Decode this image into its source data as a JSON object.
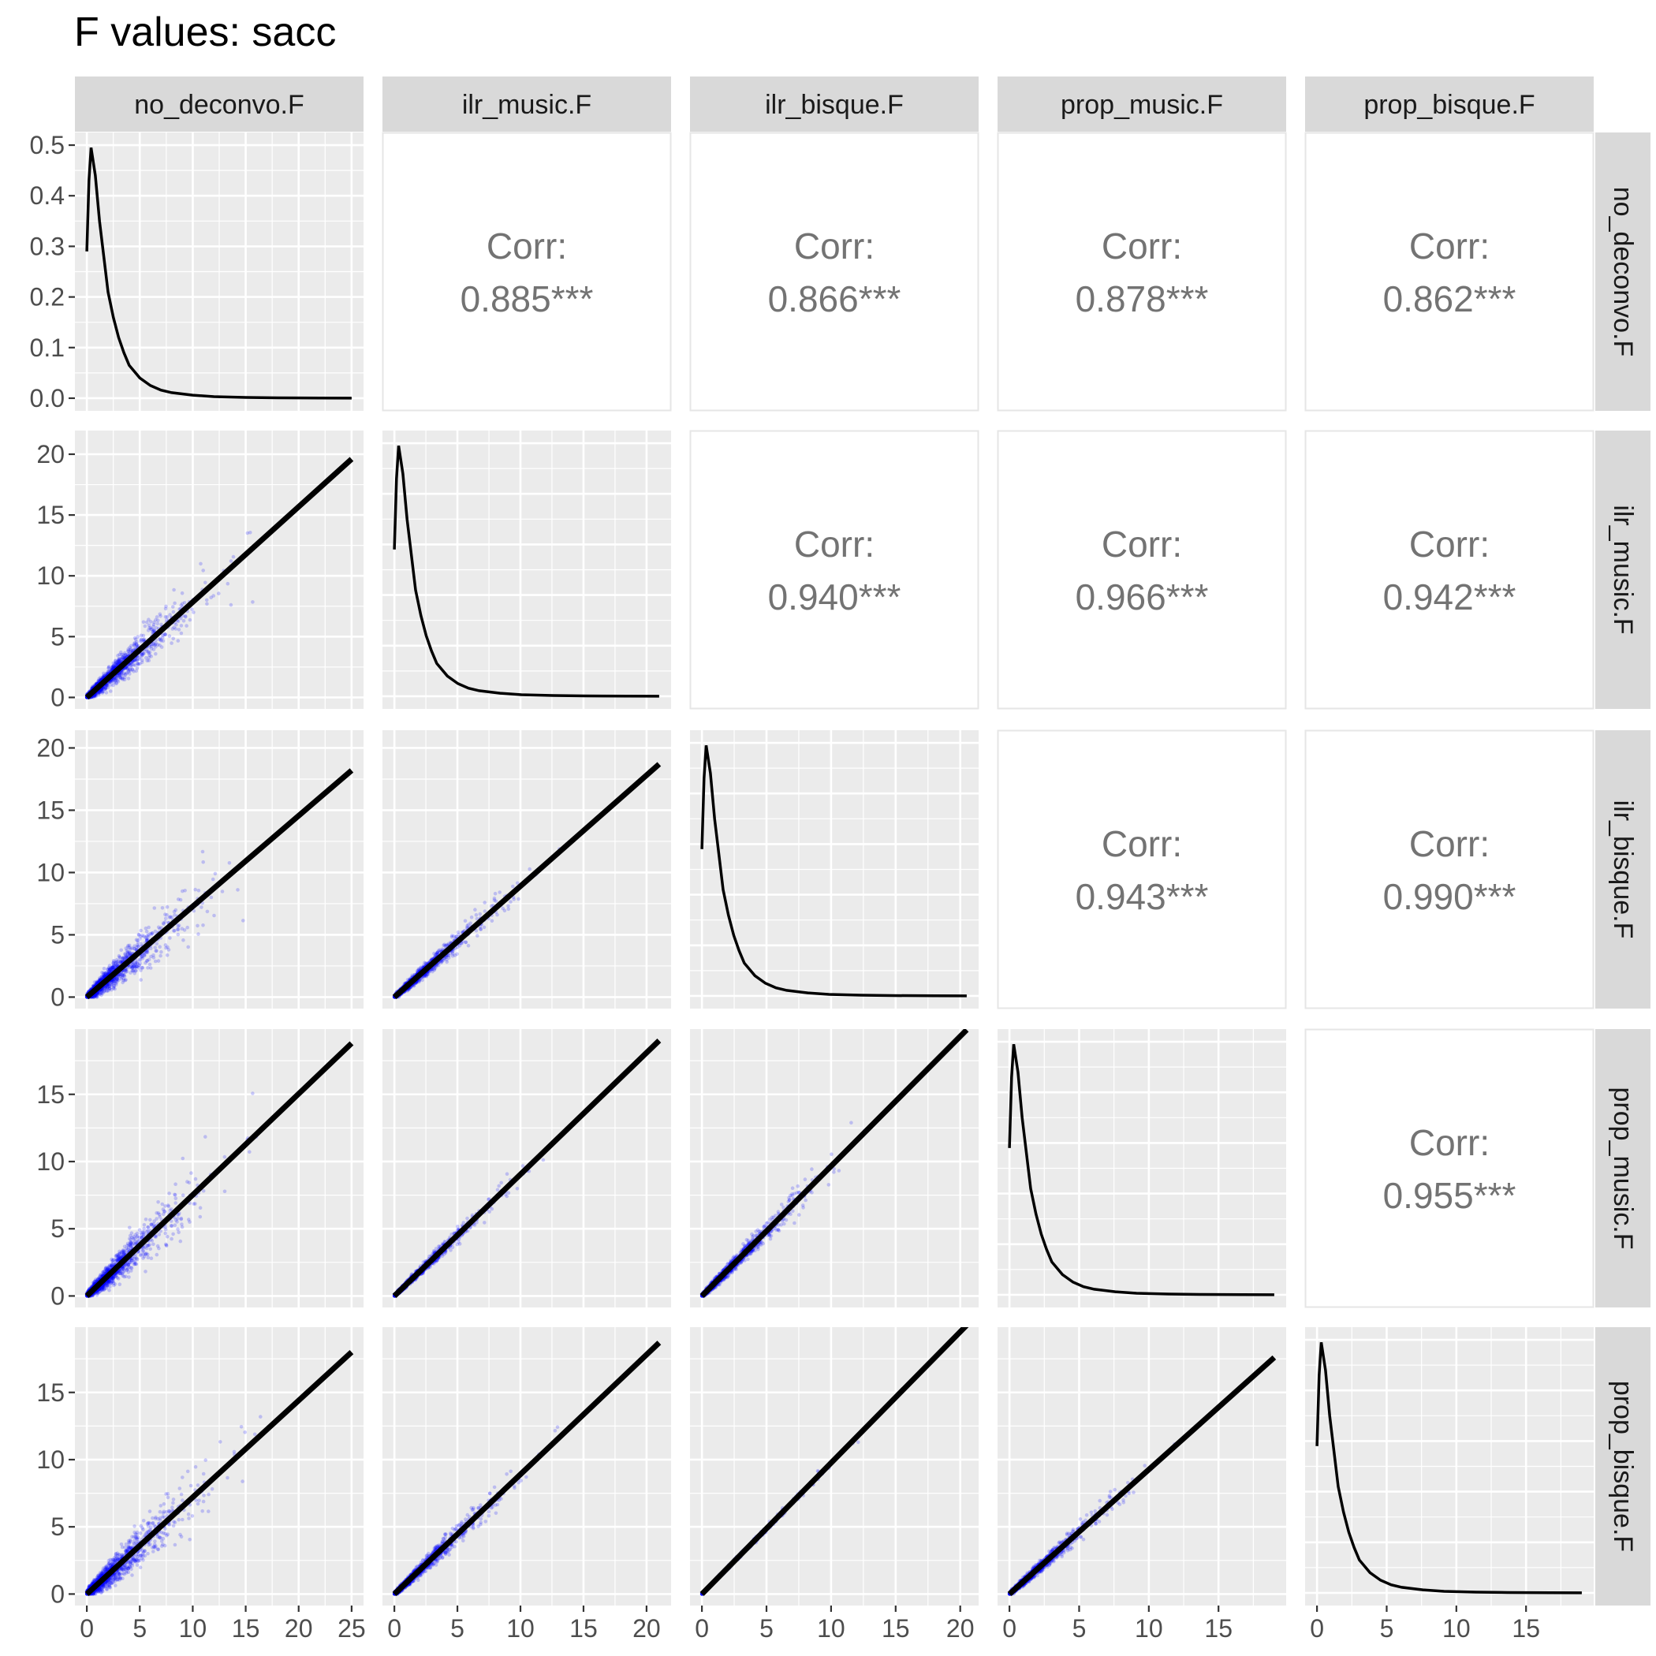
{
  "title": "F values: sacc",
  "chart_data": {
    "type": "scatter",
    "kind": "pairs-matrix",
    "variables": [
      "no_deconvo.F",
      "ilr_music.F",
      "ilr_bisque.F",
      "prop_music.F",
      "prop_bisque.F"
    ],
    "variable_ranges": [
      [
        0,
        25
      ],
      [
        0,
        21
      ],
      [
        0,
        20.5
      ],
      [
        0,
        19
      ],
      [
        0,
        19
      ]
    ],
    "ticks": [
      [
        "0",
        "5",
        "10",
        "15",
        "20",
        "25"
      ],
      [
        "0",
        "5",
        "10",
        "15",
        "20"
      ],
      [
        "0",
        "5",
        "10",
        "15",
        "20"
      ],
      [
        "0",
        "5",
        "10",
        "15"
      ],
      [
        "0",
        "5",
        "10",
        "15"
      ]
    ],
    "density_ylim": [
      0,
      0.5
    ],
    "density_y_ticks": [
      "0.0",
      "0.1",
      "0.2",
      "0.3",
      "0.4",
      "0.5"
    ],
    "density_curve": {
      "x": [
        0,
        0.2,
        0.4,
        0.8,
        1.2,
        1.6,
        2,
        2.5,
        3,
        3.5,
        4,
        5,
        6,
        7,
        8,
        10,
        12,
        15,
        18,
        22,
        25
      ],
      "y": [
        0.29,
        0.43,
        0.495,
        0.44,
        0.35,
        0.28,
        0.21,
        0.16,
        0.12,
        0.09,
        0.065,
        0.04,
        0.025,
        0.016,
        0.011,
        0.006,
        0.003,
        0.0015,
        0.0007,
        0.0002,
        0.0001
      ]
    },
    "correlations": [
      {
        "row": 0,
        "col": 1,
        "label": "Corr:",
        "value": "0.885***"
      },
      {
        "row": 0,
        "col": 2,
        "label": "Corr:",
        "value": "0.866***"
      },
      {
        "row": 0,
        "col": 3,
        "label": "Corr:",
        "value": "0.878***"
      },
      {
        "row": 0,
        "col": 4,
        "label": "Corr:",
        "value": "0.862***"
      },
      {
        "row": 1,
        "col": 2,
        "label": "Corr:",
        "value": "0.940***"
      },
      {
        "row": 1,
        "col": 3,
        "label": "Corr:",
        "value": "0.966***"
      },
      {
        "row": 1,
        "col": 4,
        "label": "Corr:",
        "value": "0.942***"
      },
      {
        "row": 2,
        "col": 3,
        "label": "Corr:",
        "value": "0.943***"
      },
      {
        "row": 2,
        "col": 4,
        "label": "Corr:",
        "value": "0.990***"
      },
      {
        "row": 3,
        "col": 4,
        "label": "Corr:",
        "value": "0.955***"
      }
    ],
    "fit_lines": [
      {
        "row": 1,
        "col": 0,
        "x": [
          0,
          25
        ],
        "y": [
          0,
          19.6
        ]
      },
      {
        "row": 2,
        "col": 0,
        "x": [
          0,
          25
        ],
        "y": [
          0,
          18.2
        ]
      },
      {
        "row": 3,
        "col": 0,
        "x": [
          0,
          25
        ],
        "y": [
          0,
          18.8
        ]
      },
      {
        "row": 4,
        "col": 0,
        "x": [
          0,
          25
        ],
        "y": [
          0,
          18.0
        ]
      },
      {
        "row": 2,
        "col": 1,
        "x": [
          0,
          21
        ],
        "y": [
          0,
          18.7
        ]
      },
      {
        "row": 3,
        "col": 1,
        "x": [
          0,
          21
        ],
        "y": [
          0,
          19.0
        ]
      },
      {
        "row": 4,
        "col": 1,
        "x": [
          0,
          21
        ],
        "y": [
          0,
          18.7
        ]
      },
      {
        "row": 3,
        "col": 2,
        "x": [
          0,
          20.5
        ],
        "y": [
          0,
          19.8
        ]
      },
      {
        "row": 4,
        "col": 2,
        "x": [
          0,
          20.5
        ],
        "y": [
          0,
          20.0
        ]
      },
      {
        "row": 4,
        "col": 3,
        "x": [
          0,
          19
        ],
        "y": [
          0,
          17.6
        ]
      }
    ],
    "point_color": "#0000ff",
    "line_color": "#000000",
    "panel_background": "#ebebeb",
    "strip_background": "#d9d9d9",
    "grid": true
  }
}
